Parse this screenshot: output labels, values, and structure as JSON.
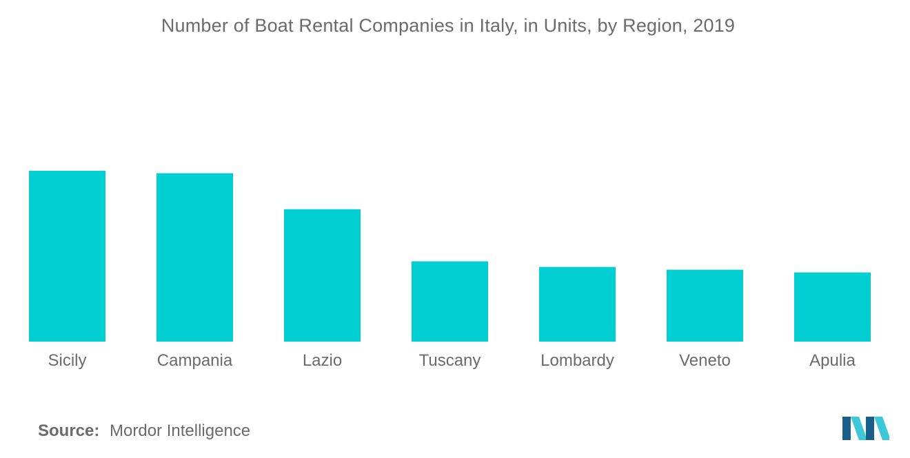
{
  "chart_data": {
    "type": "bar",
    "title": "Number of Boat Rental Companies in Italy, in Units, by Region, 2019",
    "categories": [
      "Sicily",
      "Campania",
      "Lazio",
      "Tuscany",
      "Lombardy",
      "Veneto",
      "Apulia"
    ],
    "values": [
      100,
      98.6,
      77.5,
      47.0,
      43.7,
      42.1,
      40.5
    ],
    "xlabel": "",
    "ylabel": "",
    "ylim": [
      0,
      100
    ],
    "grid": false,
    "legend": "none",
    "bar_color": "#00ced1"
  },
  "source": {
    "label": "Source:",
    "text": "Mordor Intelligence"
  },
  "colors": {
    "bar": "#00ced1",
    "text": "#6b6b6b",
    "logo_dark": "#1a5f8a",
    "logo_light": "#3cc8d8"
  },
  "logo": {
    "icon": "mordor-intelligence-logo-icon"
  }
}
